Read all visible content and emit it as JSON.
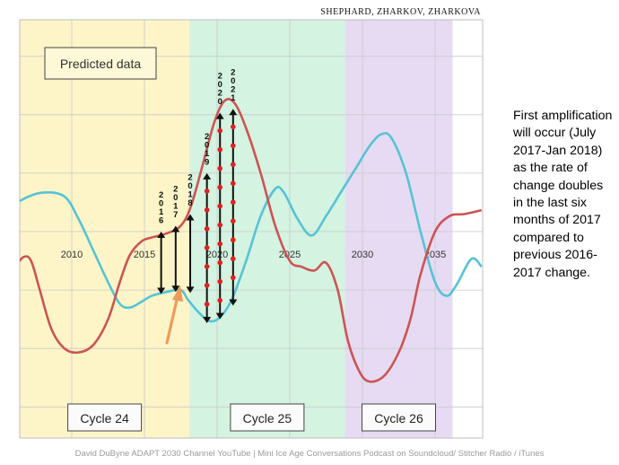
{
  "header": {
    "authors": "SHEPHARD, ZHARKOV, ZHARKOVA"
  },
  "side_text": "First amplification will occur (July 2017-Jan 2018)  as the rate of change doubles in the last six months of 2017 compared to previous 2016-2017 change.",
  "footer": "David DuByne ADAPT 2030 Channel YouTube | Mini Ice Age Conversations Podcast on Soundcloud/ Stitcher Radio / iTunes",
  "chart_data": {
    "type": "line",
    "title": "",
    "xlabel": "",
    "ylabel": "",
    "x_ticks": [
      2010,
      2015,
      2020,
      2025,
      2030,
      2035
    ],
    "xlim": [
      2005.4,
      2036.2
    ],
    "grid": true,
    "annotation_box": "Predicted data",
    "regions": [
      {
        "label": "Cycle 24",
        "from": 2005.4,
        "to": 2018.1,
        "color": "#fdf5c8"
      },
      {
        "label": "Cycle 25",
        "from": 2018.1,
        "to": 2028.8,
        "color": "#d4f3e1"
      },
      {
        "label": "Cycle 26",
        "from": 2028.8,
        "to": 2036.2,
        "color": "#e7dbf3"
      }
    ],
    "series": [
      {
        "color": "#56c3d4",
        "x": [
          2005.4,
          2006.5,
          2008,
          2009.5,
          2010.5,
          2011.5,
          2012.5,
          2013.3,
          2014,
          2014.8,
          2015.5,
          2016.5,
          2017.5,
          2018,
          2018.8,
          2019.5,
          2020.2,
          2021,
          2022,
          2023,
          2024,
          2024.6,
          2025.5,
          2026.5,
          2027.5,
          2028.5,
          2029.5,
          2030.5,
          2031.3,
          2032,
          2033,
          2034,
          2035,
          2035.8,
          2036.5,
          2037.5,
          2038.2
        ],
        "values": [
          0.9,
          1.6,
          2.0,
          1.8,
          0.6,
          -1.0,
          -2.6,
          -3.7,
          -3.9,
          -3.6,
          -3.3,
          -3.1,
          -3.0,
          -3.5,
          -4.2,
          -4.6,
          -4.4,
          -3.5,
          -1.5,
          0.8,
          2.2,
          2.0,
          0.7,
          -0.2,
          0.8,
          2.0,
          3.2,
          4.4,
          5.0,
          4.8,
          3.0,
          0.0,
          -2.6,
          -3.3,
          -2.7,
          -1.4,
          -1.8
        ]
      },
      {
        "color": "#cc5454",
        "x": [
          2005.4,
          2006.1,
          2006.7,
          2007.2,
          2007.8,
          2008.6,
          2009.5,
          2010.5,
          2011.5,
          2012.5,
          2013.3,
          2014,
          2014.8,
          2015.5,
          2016.5,
          2017.5,
          2018.2,
          2019,
          2019.8,
          2020.5,
          2021.2,
          2022,
          2023,
          2024,
          2025,
          2025.8,
          2026.7,
          2027.5,
          2028.3,
          2029,
          2029.8,
          2030.5,
          2031.5,
          2032.5,
          2033.3,
          2034,
          2035,
          2036,
          2037,
          2038.2
        ],
        "values": [
          -2.6,
          -1.8,
          -1.3,
          -1.5,
          -3.0,
          -5.0,
          -6.0,
          -6.2,
          -5.8,
          -4.5,
          -2.6,
          -1.2,
          -0.5,
          -0.3,
          -0.1,
          0.3,
          1.3,
          3.4,
          5.6,
          6.7,
          6.6,
          5.3,
          3.0,
          0.3,
          -1.5,
          -1.8,
          -2.0,
          -1.6,
          -3.0,
          -5.6,
          -7.2,
          -7.7,
          -7.4,
          -6.2,
          -4.5,
          -2.2,
          0.0,
          0.8,
          0.9,
          1.1
        ]
      }
    ],
    "markers": [
      {
        "label": "2016",
        "x": 2016.15,
        "y_from": -3.2,
        "y_to": 0.0
      },
      {
        "label": "2017",
        "x": 2017.15,
        "y_from": -3.1,
        "y_to": 0.3
      },
      {
        "label": "2018",
        "x": 2018.15,
        "y_from": -3.15,
        "y_to": 0.9
      },
      {
        "label": "2019",
        "x": 2019.3,
        "y_from": -4.7,
        "y_to": 3.0
      },
      {
        "label": "2020",
        "x": 2020.2,
        "y_from": -4.5,
        "y_to": 6.1
      },
      {
        "label": "2021",
        "x": 2021.1,
        "y_from": -3.8,
        "y_to": 6.3
      }
    ],
    "pointer_arrow_color": "#ed9b5a"
  }
}
